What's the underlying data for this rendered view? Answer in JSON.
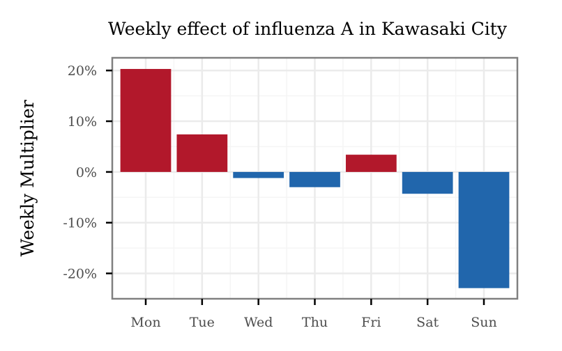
{
  "chart_data": {
    "type": "bar",
    "title": "Weekly effect of influenza A in Kawasaki City",
    "xlabel": "",
    "ylabel": "Weekly Multiplier",
    "categories": [
      "Mon",
      "Tue",
      "Wed",
      "Thu",
      "Fri",
      "Sat",
      "Sun"
    ],
    "values": [
      20.3,
      7.4,
      -1.2,
      -3.0,
      3.4,
      -4.3,
      -22.9
    ],
    "ylim": [
      -25,
      22.5
    ],
    "yticks": [
      20,
      10,
      0,
      -10,
      -20
    ],
    "ytick_labels": [
      "20%",
      "10%",
      "0%",
      "-10%",
      "-20%"
    ],
    "grid": true,
    "legend": "none",
    "colors": {
      "positive": "#b2182b",
      "negative": "#2166ac",
      "panel_border": "#808080",
      "grid_major": "#ebebeb",
      "grid_minor": "#f5f5f5"
    }
  }
}
